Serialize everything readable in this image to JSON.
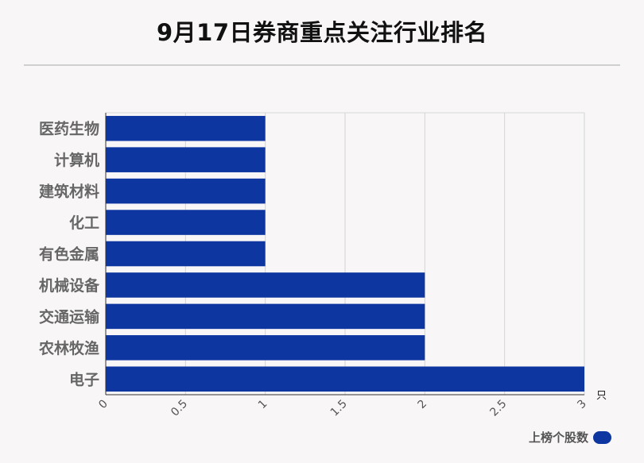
{
  "chart_data": {
    "type": "bar",
    "orientation": "horizontal",
    "title": "9月17日券商重点关注行业排名",
    "categories": [
      "医药生物",
      "计算机",
      "建筑材料",
      "化工",
      "有色金属",
      "机械设备",
      "交通运输",
      "农林牧渔",
      "电子"
    ],
    "series": [
      {
        "name": "上榜个股数",
        "values": [
          1,
          1,
          1,
          1,
          1,
          2,
          2,
          2,
          3
        ]
      }
    ],
    "xlabel": "只",
    "ylabel": "",
    "xlim": [
      0,
      3
    ],
    "xticks": [
      "0",
      "0.5",
      "1",
      "1.5",
      "2",
      "2.5",
      "3"
    ],
    "grid": "vertical",
    "legend_position": "bottom-right",
    "bar_color": "#0e36a0"
  }
}
